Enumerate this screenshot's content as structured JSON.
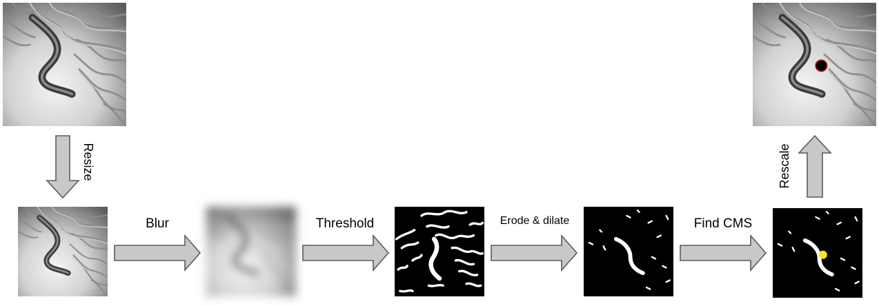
{
  "steps": {
    "resize": "Resize",
    "blur": "Blur",
    "threshold": "Threshold",
    "erode_dilate": "Erode & dilate",
    "find_cms": "Find CMS",
    "rescale": "Rescale"
  },
  "colors": {
    "arrow_fill": "#c8c8c8",
    "arrow_stroke": "#5a5a5a",
    "mask_bg": "#000000",
    "mask_fg": "#ffffff",
    "cms_marker": "#f7e81a",
    "result_marker": "#000000",
    "result_marker_ring": "#b0201a"
  },
  "icons": {
    "original": "worm-photo-icon",
    "resized": "worm-photo-small-icon",
    "blurred": "worm-photo-blurred-icon",
    "thresholded": "binary-mask-icon",
    "eroded": "binary-mask-cleaned-icon",
    "cms": "binary-mask-cms-icon",
    "result": "worm-photo-marked-icon"
  }
}
